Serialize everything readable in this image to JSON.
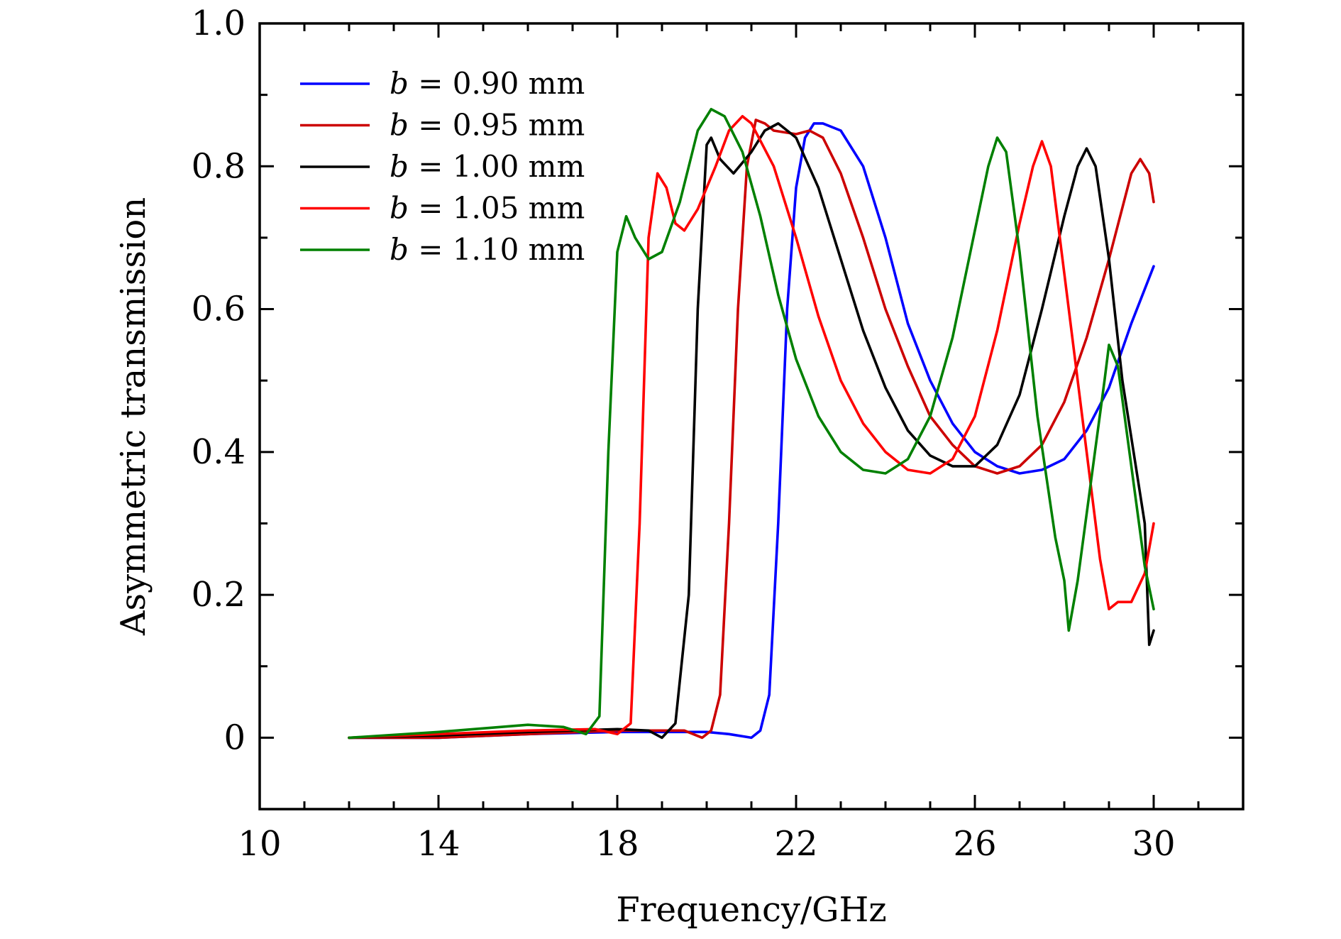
{
  "chart_data": {
    "type": "line",
    "title": "",
    "xlabel": "Frequency/GHz",
    "ylabel": "Asymmetric transmission",
    "xlim": [
      10,
      32
    ],
    "ylim": [
      -0.1,
      1.0
    ],
    "x_ticks": [
      10,
      14,
      18,
      22,
      26,
      30
    ],
    "x_tick_labels": [
      "10",
      "14",
      "18",
      "22",
      "26",
      "30"
    ],
    "y_ticks": [
      0,
      0.2,
      0.4,
      0.6,
      0.8,
      1.0
    ],
    "y_tick_labels": [
      "0",
      "0.2",
      "0.4",
      "0.6",
      "0.8",
      "1.0"
    ],
    "grid": false,
    "legend_position": "top-left",
    "series": [
      {
        "name": "b = 0.90 mm",
        "legend_var": "b",
        "legend_value": "= 0.90 mm",
        "color": "#0000ff",
        "points": [
          [
            12,
            0.0
          ],
          [
            14,
            0.0
          ],
          [
            16,
            0.005
          ],
          [
            18,
            0.008
          ],
          [
            20,
            0.008
          ],
          [
            20.5,
            0.005
          ],
          [
            21,
            0.0
          ],
          [
            21.2,
            0.01
          ],
          [
            21.4,
            0.06
          ],
          [
            21.6,
            0.3
          ],
          [
            21.8,
            0.6
          ],
          [
            22.0,
            0.77
          ],
          [
            22.2,
            0.84
          ],
          [
            22.4,
            0.86
          ],
          [
            22.6,
            0.86
          ],
          [
            23.0,
            0.85
          ],
          [
            23.5,
            0.8
          ],
          [
            24.0,
            0.7
          ],
          [
            24.5,
            0.58
          ],
          [
            25.0,
            0.5
          ],
          [
            25.5,
            0.44
          ],
          [
            26.0,
            0.4
          ],
          [
            26.5,
            0.38
          ],
          [
            27.0,
            0.37
          ],
          [
            27.5,
            0.375
          ],
          [
            28.0,
            0.39
          ],
          [
            28.5,
            0.43
          ],
          [
            29.0,
            0.49
          ],
          [
            29.5,
            0.58
          ],
          [
            30.0,
            0.66
          ]
        ]
      },
      {
        "name": "b = 0.95 mm",
        "legend_var": "b",
        "legend_value": "= 0.95 mm",
        "color": "#cc0000",
        "points": [
          [
            12,
            0.0
          ],
          [
            14,
            0.0
          ],
          [
            16,
            0.005
          ],
          [
            18,
            0.01
          ],
          [
            19.5,
            0.01
          ],
          [
            19.9,
            0.0
          ],
          [
            20.1,
            0.01
          ],
          [
            20.3,
            0.06
          ],
          [
            20.5,
            0.3
          ],
          [
            20.7,
            0.6
          ],
          [
            20.9,
            0.8
          ],
          [
            21.1,
            0.865
          ],
          [
            21.3,
            0.86
          ],
          [
            21.5,
            0.85
          ],
          [
            22.0,
            0.845
          ],
          [
            22.3,
            0.85
          ],
          [
            22.6,
            0.84
          ],
          [
            23.0,
            0.79
          ],
          [
            23.5,
            0.7
          ],
          [
            24.0,
            0.6
          ],
          [
            24.5,
            0.52
          ],
          [
            25.0,
            0.45
          ],
          [
            25.5,
            0.41
          ],
          [
            26.0,
            0.38
          ],
          [
            26.5,
            0.37
          ],
          [
            27.0,
            0.38
          ],
          [
            27.5,
            0.41
          ],
          [
            28.0,
            0.47
          ],
          [
            28.5,
            0.56
          ],
          [
            29.0,
            0.67
          ],
          [
            29.5,
            0.79
          ],
          [
            29.7,
            0.81
          ],
          [
            29.9,
            0.79
          ],
          [
            30.0,
            0.75
          ]
        ]
      },
      {
        "name": "b = 1.00 mm",
        "legend_var": "b",
        "legend_value": "= 1.00 mm",
        "color": "#000000",
        "points": [
          [
            12,
            0.0
          ],
          [
            14,
            0.003
          ],
          [
            16,
            0.008
          ],
          [
            18,
            0.012
          ],
          [
            18.7,
            0.01
          ],
          [
            19.0,
            0.0
          ],
          [
            19.3,
            0.02
          ],
          [
            19.6,
            0.2
          ],
          [
            19.8,
            0.6
          ],
          [
            20.0,
            0.83
          ],
          [
            20.1,
            0.84
          ],
          [
            20.3,
            0.81
          ],
          [
            20.6,
            0.79
          ],
          [
            21.0,
            0.82
          ],
          [
            21.3,
            0.85
          ],
          [
            21.6,
            0.86
          ],
          [
            22.0,
            0.84
          ],
          [
            22.5,
            0.77
          ],
          [
            23.0,
            0.67
          ],
          [
            23.5,
            0.57
          ],
          [
            24.0,
            0.49
          ],
          [
            24.5,
            0.43
          ],
          [
            25.0,
            0.395
          ],
          [
            25.5,
            0.38
          ],
          [
            26.0,
            0.38
          ],
          [
            26.5,
            0.41
          ],
          [
            27.0,
            0.48
          ],
          [
            27.5,
            0.6
          ],
          [
            28.0,
            0.73
          ],
          [
            28.3,
            0.8
          ],
          [
            28.5,
            0.825
          ],
          [
            28.7,
            0.8
          ],
          [
            29.0,
            0.67
          ],
          [
            29.3,
            0.5
          ],
          [
            29.6,
            0.38
          ],
          [
            29.8,
            0.3
          ],
          [
            29.9,
            0.13
          ],
          [
            30.0,
            0.15
          ]
        ]
      },
      {
        "name": "b = 1.05 mm",
        "legend_var": "b",
        "legend_value": "= 1.05 mm",
        "color": "#ff0000",
        "points": [
          [
            12,
            0.0
          ],
          [
            14,
            0.005
          ],
          [
            16,
            0.01
          ],
          [
            17.5,
            0.012
          ],
          [
            18.0,
            0.005
          ],
          [
            18.3,
            0.02
          ],
          [
            18.5,
            0.3
          ],
          [
            18.7,
            0.7
          ],
          [
            18.9,
            0.79
          ],
          [
            19.1,
            0.77
          ],
          [
            19.3,
            0.72
          ],
          [
            19.5,
            0.71
          ],
          [
            19.8,
            0.74
          ],
          [
            20.2,
            0.8
          ],
          [
            20.5,
            0.85
          ],
          [
            20.8,
            0.87
          ],
          [
            21.0,
            0.86
          ],
          [
            21.5,
            0.8
          ],
          [
            22.0,
            0.7
          ],
          [
            22.5,
            0.59
          ],
          [
            23.0,
            0.5
          ],
          [
            23.5,
            0.44
          ],
          [
            24.0,
            0.4
          ],
          [
            24.5,
            0.375
          ],
          [
            25.0,
            0.37
          ],
          [
            25.5,
            0.39
          ],
          [
            26.0,
            0.45
          ],
          [
            26.5,
            0.57
          ],
          [
            27.0,
            0.72
          ],
          [
            27.3,
            0.8
          ],
          [
            27.5,
            0.835
          ],
          [
            27.7,
            0.8
          ],
          [
            28.0,
            0.65
          ],
          [
            28.5,
            0.4
          ],
          [
            28.8,
            0.25
          ],
          [
            29.0,
            0.18
          ],
          [
            29.2,
            0.19
          ],
          [
            29.5,
            0.19
          ],
          [
            29.8,
            0.23
          ],
          [
            30.0,
            0.3
          ]
        ]
      },
      {
        "name": "b = 1.10 mm",
        "legend_var": "b",
        "legend_value": "= 1.10 mm",
        "color": "#008000",
        "points": [
          [
            12,
            0.0
          ],
          [
            14,
            0.008
          ],
          [
            16,
            0.018
          ],
          [
            16.8,
            0.015
          ],
          [
            17.3,
            0.005
          ],
          [
            17.6,
            0.03
          ],
          [
            17.8,
            0.4
          ],
          [
            18.0,
            0.68
          ],
          [
            18.2,
            0.73
          ],
          [
            18.4,
            0.7
          ],
          [
            18.7,
            0.67
          ],
          [
            19.0,
            0.68
          ],
          [
            19.4,
            0.75
          ],
          [
            19.8,
            0.85
          ],
          [
            20.1,
            0.88
          ],
          [
            20.4,
            0.87
          ],
          [
            20.8,
            0.82
          ],
          [
            21.2,
            0.73
          ],
          [
            21.6,
            0.62
          ],
          [
            22.0,
            0.53
          ],
          [
            22.5,
            0.45
          ],
          [
            23.0,
            0.4
          ],
          [
            23.5,
            0.375
          ],
          [
            24.0,
            0.37
          ],
          [
            24.5,
            0.39
          ],
          [
            25.0,
            0.45
          ],
          [
            25.5,
            0.56
          ],
          [
            26.0,
            0.71
          ],
          [
            26.3,
            0.8
          ],
          [
            26.5,
            0.84
          ],
          [
            26.7,
            0.82
          ],
          [
            27.0,
            0.68
          ],
          [
            27.4,
            0.45
          ],
          [
            27.8,
            0.28
          ],
          [
            28.0,
            0.22
          ],
          [
            28.1,
            0.15
          ],
          [
            28.3,
            0.22
          ],
          [
            28.6,
            0.36
          ],
          [
            28.9,
            0.5
          ],
          [
            29.0,
            0.55
          ],
          [
            29.2,
            0.52
          ],
          [
            29.5,
            0.38
          ],
          [
            29.8,
            0.24
          ],
          [
            30.0,
            0.18
          ]
        ]
      }
    ]
  }
}
